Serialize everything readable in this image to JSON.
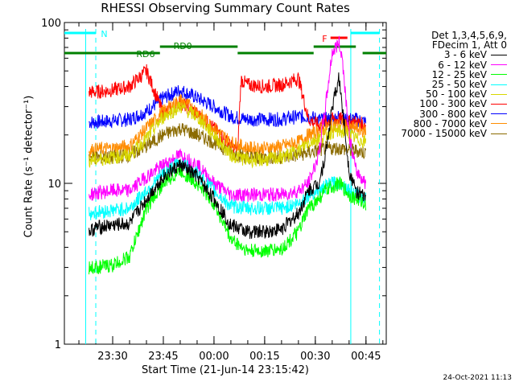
{
  "chart_data": {
    "type": "line",
    "title": "RHESSI Observing Summary Count Rates",
    "xlabel": "Start Time (21-Jun-14 23:15:42)",
    "ylabel": "Count Rate (s⁻¹ detector⁻¹)",
    "y_scale": "log",
    "ylim": [
      1,
      100
    ],
    "xlim": [
      "23:15:42",
      "00:51:00"
    ],
    "x_ticks": [
      "23:30",
      "23:45",
      "00:00",
      "00:15",
      "00:30",
      "00:45"
    ],
    "y_ticks": [
      "1",
      "10",
      "100"
    ],
    "legend_header": [
      "Det 1,3,4,5,6,9,",
      "FDecim 1, Att 0"
    ],
    "legend_position": "right",
    "series": [
      {
        "name": "3 - 6 keV",
        "color": "#000000",
        "x": [
          "23:23",
          "23:25",
          "23:30",
          "23:35",
          "23:40",
          "23:45",
          "23:50",
          "23:55",
          "00:00",
          "00:05",
          "00:10",
          "00:15",
          "00:20",
          "00:25",
          "00:28",
          "00:31",
          "00:33",
          "00:35",
          "00:37",
          "00:38",
          "00:40",
          "00:42",
          "00:45"
        ],
        "y": [
          5,
          5.3,
          5.5,
          5.6,
          8,
          11,
          13,
          11,
          8,
          5.5,
          5,
          5,
          5.2,
          6.5,
          9,
          10,
          15,
          30,
          45,
          30,
          12,
          9,
          8
        ]
      },
      {
        "name": "6 - 12 keV",
        "color": "#ff00ff",
        "x": [
          "23:23",
          "23:25",
          "23:30",
          "23:35",
          "23:40",
          "23:45",
          "23:50",
          "23:55",
          "00:00",
          "00:05",
          "00:10",
          "00:15",
          "00:20",
          "00:25",
          "00:28",
          "00:31",
          "00:33",
          "00:35",
          "00:37",
          "00:38",
          "00:40",
          "00:42",
          "00:45"
        ],
        "y": [
          8.5,
          8.7,
          9,
          9,
          11,
          13,
          15,
          13,
          10,
          8.5,
          8.5,
          8.5,
          8.5,
          9,
          10,
          15,
          30,
          65,
          75,
          60,
          20,
          12,
          10
        ]
      },
      {
        "name": "12 - 25 keV",
        "color": "#00ff00",
        "x": [
          "23:23",
          "23:25",
          "23:30",
          "23:35",
          "23:40",
          "23:45",
          "23:50",
          "23:55",
          "00:00",
          "00:05",
          "00:10",
          "00:15",
          "00:20",
          "00:25",
          "00:28",
          "00:31",
          "00:33",
          "00:35",
          "00:37",
          "00:38",
          "00:40",
          "00:42",
          "00:45"
        ],
        "y": [
          3,
          3,
          3.1,
          3.5,
          7,
          10,
          12,
          10,
          7.5,
          4.5,
          3.8,
          3.8,
          3.9,
          5,
          7,
          8,
          9,
          9.5,
          10,
          9.5,
          8.5,
          8,
          7.5
        ]
      },
      {
        "name": "25 - 50 keV",
        "color": "#00ffff",
        "x": [
          "23:23",
          "23:25",
          "23:30",
          "23:35",
          "23:40",
          "23:45",
          "23:50",
          "23:55",
          "00:00",
          "00:05",
          "00:10",
          "00:15",
          "00:20",
          "00:25",
          "00:28",
          "00:31",
          "00:33",
          "00:35",
          "00:37",
          "00:38",
          "00:40",
          "00:42",
          "00:45"
        ],
        "y": [
          6.5,
          6.6,
          6.8,
          7,
          9,
          11.5,
          13.5,
          11.5,
          9,
          7.2,
          7,
          7,
          7,
          7.5,
          8.5,
          9,
          9.5,
          10,
          10,
          10,
          9,
          8.5,
          8
        ]
      },
      {
        "name": "50 - 100 keV",
        "color": "#d8d800",
        "x": [
          "23:23",
          "23:25",
          "23:30",
          "23:35",
          "23:40",
          "23:45",
          "23:50",
          "23:55",
          "00:00",
          "00:05",
          "00:10",
          "00:15",
          "00:20",
          "00:25",
          "00:28",
          "00:31",
          "00:33",
          "00:35",
          "00:37",
          "00:38",
          "00:40",
          "00:42",
          "00:45"
        ],
        "y": [
          14,
          14,
          14.5,
          15,
          19,
          26,
          30,
          26,
          20,
          15,
          14,
          14,
          14.5,
          16,
          18,
          19,
          20,
          21,
          21,
          21,
          20,
          19,
          18
        ]
      },
      {
        "name": "100 - 300 keV",
        "color": "#ff0000",
        "x": [
          "23:23",
          "23:25",
          "23:30",
          "23:35",
          "23:40",
          "23:45",
          "23:50",
          "23:55",
          "00:00",
          "00:05",
          "00:07",
          "00:08",
          "00:10",
          "00:15",
          "00:20",
          "00:25",
          "00:28",
          "00:31",
          "00:33",
          "00:35",
          "00:37",
          "00:38",
          "00:40",
          "00:42",
          "00:45"
        ],
        "y": [
          37,
          37,
          38,
          40,
          50,
          27,
          32,
          27,
          22,
          17,
          16,
          44,
          41,
          40,
          41,
          45,
          25,
          23,
          24,
          25,
          25,
          25,
          24,
          24,
          23
        ]
      },
      {
        "name": "300 - 800 keV",
        "color": "#0000ff",
        "x": [
          "23:23",
          "23:25",
          "23:30",
          "23:35",
          "23:40",
          "23:45",
          "23:50",
          "23:55",
          "00:00",
          "00:05",
          "00:10",
          "00:15",
          "00:20",
          "00:25",
          "00:28",
          "00:31",
          "00:33",
          "00:35",
          "00:37",
          "00:38",
          "00:40",
          "00:42",
          "00:45"
        ],
        "y": [
          24,
          24,
          24.5,
          25,
          28,
          34,
          38,
          34,
          30,
          26,
          25,
          25,
          25,
          26,
          26,
          25,
          25,
          25,
          26,
          25,
          25,
          25,
          24
        ]
      },
      {
        "name": "800 - 7000 keV",
        "color": "#ff8c00",
        "x": [
          "23:23",
          "23:25",
          "23:30",
          "23:35",
          "23:40",
          "23:45",
          "23:50",
          "23:55",
          "00:00",
          "00:05",
          "00:10",
          "00:15",
          "00:20",
          "00:25",
          "00:28",
          "00:31",
          "00:33",
          "00:35",
          "00:37",
          "00:38",
          "00:40",
          "00:42",
          "00:45"
        ],
        "y": [
          16,
          16.2,
          16.5,
          17,
          22,
          28,
          33,
          28,
          22,
          18,
          16.5,
          16.5,
          17,
          18,
          20,
          21,
          22,
          23,
          23,
          23,
          22,
          22,
          21
        ]
      },
      {
        "name": "7000 - 15000 keV",
        "color": "#8b6b00",
        "x": [
          "23:23",
          "23:25",
          "23:30",
          "23:35",
          "23:40",
          "23:45",
          "23:50",
          "23:55",
          "00:00",
          "00:05",
          "00:10",
          "00:15",
          "00:20",
          "00:25",
          "00:28",
          "00:31",
          "00:33",
          "00:35",
          "00:37",
          "00:38",
          "00:40",
          "00:42",
          "00:45"
        ],
        "y": [
          14.5,
          14.5,
          14.5,
          15,
          17,
          20,
          22,
          20,
          18,
          15.5,
          14.5,
          14.5,
          14.5,
          15,
          15.5,
          16,
          16.5,
          16.5,
          16.5,
          16.5,
          16,
          16,
          15.5
        ]
      }
    ],
    "status_bars": [
      {
        "label": "N",
        "color": "#00ffff",
        "segments": [
          [
            "23:15:42",
            "23:25:00"
          ],
          [
            "00:40:30",
            "00:49:00"
          ]
        ]
      },
      {
        "label": "F",
        "color": "#ff0000",
        "segments": [
          [
            "00:34:30",
            "00:39:30"
          ]
        ]
      },
      {
        "label": "RD6",
        "color": "#008000",
        "segments": [
          [
            "23:15:42",
            "23:44:00"
          ],
          [
            "00:07:00",
            "00:29:30"
          ],
          [
            "00:44:00",
            "00:51:00"
          ]
        ]
      },
      {
        "label": "RD0",
        "color": "#008000",
        "segments": [
          [
            "23:44:00",
            "00:07:00"
          ],
          [
            "00:29:30",
            "00:42:00"
          ]
        ]
      }
    ],
    "markers": [
      {
        "x": "23:22:00",
        "color": "#00ffff",
        "style": "solid"
      },
      {
        "x": "23:25:00",
        "color": "#00ffff",
        "style": "dashed"
      },
      {
        "x": "00:40:30",
        "color": "#00ffff",
        "style": "solid"
      },
      {
        "x": "00:49:00",
        "color": "#00ffff",
        "style": "dashed"
      }
    ]
  },
  "timestamp": "24-Oct-2021 11:13"
}
